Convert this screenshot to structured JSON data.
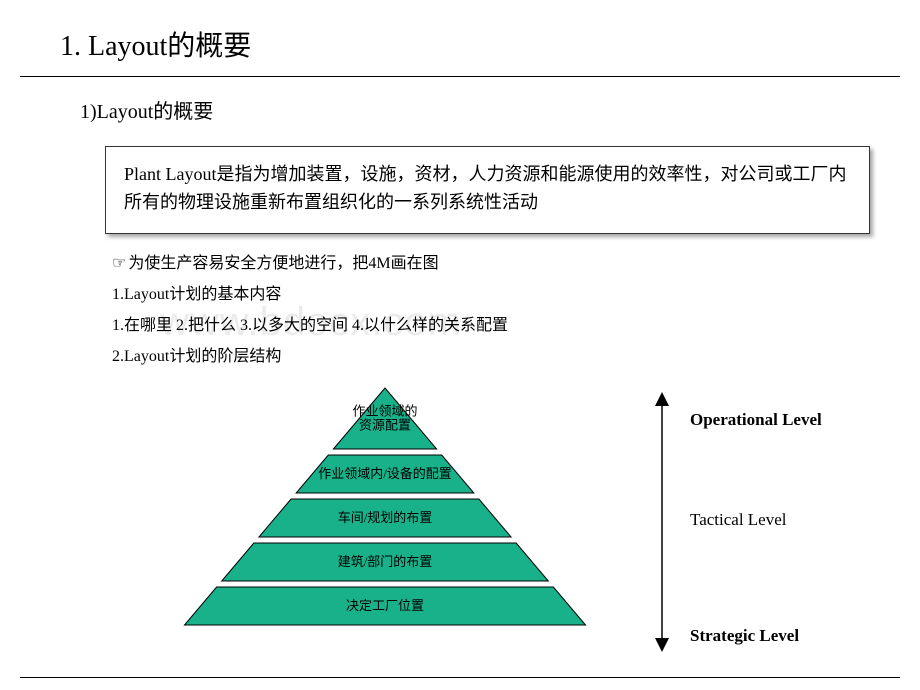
{
  "page_title": "1. Layout的概要",
  "sub_title": "1)Layout的概要",
  "definition": "Plant Layout是指为增加装置，设施，资材，人力资源和能源使用的效率性，对公司或工厂内所有的物理设施重新布置组织化的一系列系统性活动",
  "bullet_pointer": "为使生产容易安全方便地进行，把4M画在图",
  "bullet_lines": [
    "1.Layout计划的基本内容",
    "1.在哪里    2.把什么    3.以多大的空间    4.以什么样的关系配置",
    "2.Layout计划的阶层结构"
  ],
  "watermark": "www.bdocx.com",
  "pyramid": {
    "type": "pyramid",
    "fill": "#18b18a",
    "stroke": "#000000",
    "stroke_width": 1,
    "layers": [
      {
        "label_lines": [
          "作业领域的",
          "资源配置"
        ]
      },
      {
        "label_lines": [
          "作业领域内/设备的配置"
        ]
      },
      {
        "label_lines": [
          "车间/规划的布置"
        ]
      },
      {
        "label_lines": [
          "建筑/部门的布置"
        ]
      },
      {
        "label_lines": [
          "决定工厂位置"
        ]
      }
    ],
    "label_color": "#000000",
    "label_fontsize": 13
  },
  "level_labels": [
    {
      "text": "Operational Level",
      "bold": true
    },
    {
      "text": "Tactical Level",
      "bold": false
    },
    {
      "text": "Strategic Level",
      "bold": true
    }
  ],
  "arrow_color": "#000000"
}
